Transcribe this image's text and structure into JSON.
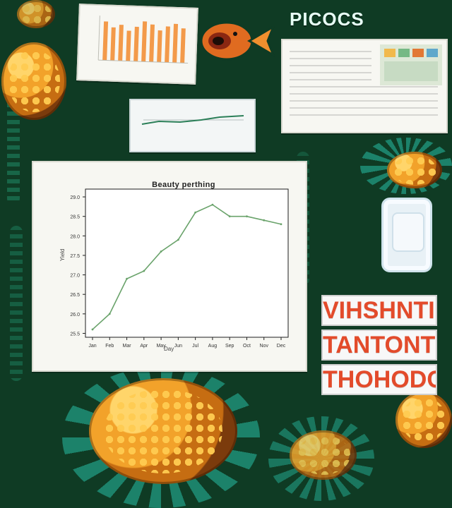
{
  "poster": {
    "headline": "PICOCS",
    "signs": [
      "VIHSHNTI IS",
      "TANTONTEC",
      "THOHODC"
    ]
  },
  "main_chart": {
    "title": "Beauty perthing",
    "xlabel": "Day",
    "ylabel": "Yield",
    "y_ticks": [
      "29.0",
      "28.5",
      "28.0",
      "27.5",
      "27.0",
      "26.5",
      "26.0",
      "25.5"
    ],
    "x_ticks": [
      "Jan",
      "Feb",
      "Mar",
      "Apr",
      "May",
      "Jun",
      "Jul",
      "Aug",
      "Sep",
      "Oct",
      "Nov",
      "Dec"
    ],
    "chart_data": {
      "type": "line",
      "title": "Beauty perthing",
      "xlabel": "Day",
      "ylabel": "Yield",
      "x": [
        "Jan",
        "Feb",
        "Mar",
        "Apr",
        "May",
        "Jun",
        "Jul",
        "Aug",
        "Sep",
        "Oct",
        "Nov",
        "Dec"
      ],
      "series": [
        {
          "values": [
            25.6,
            26.0,
            26.9,
            27.1,
            27.6,
            27.9,
            28.6,
            28.8,
            28.5,
            28.5,
            28.4,
            28.3
          ]
        }
      ],
      "ylim": [
        25.4,
        29.2
      ],
      "grid": false
    }
  },
  "colors": {
    "background": "#0f3b24",
    "accent_text": "#e34b2b",
    "chart_line": "#6aa36b"
  }
}
